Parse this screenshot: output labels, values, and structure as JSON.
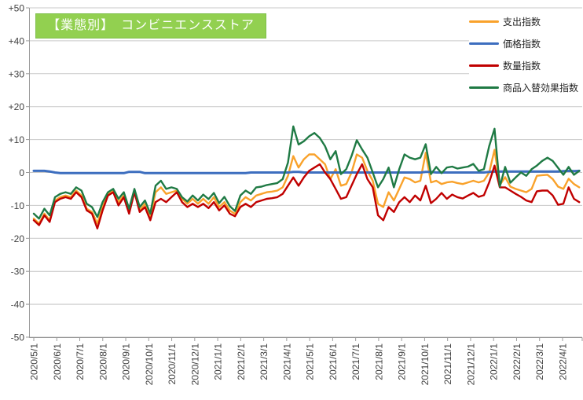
{
  "title_box": {
    "label": "【業態別】　コンビニエンスストア",
    "bg_color": "#92D050",
    "text_color": "#FFFFFF"
  },
  "legend": [
    {
      "id": "expenditure-index",
      "label": "支出指数",
      "color": "#F9A22B"
    },
    {
      "id": "price-index",
      "label": "価格指数",
      "color": "#3D6EBF"
    },
    {
      "id": "quantity-index",
      "label": "数量指数",
      "color": "#C00000"
    },
    {
      "id": "product-mix-effect-index",
      "label": "商品入替効果指数",
      "color": "#1F7A44"
    }
  ],
  "chart_data": {
    "type": "line",
    "title": "【業態別】　コンビニエンスストア",
    "x_start": "2020/5/1",
    "x_frequency": "weekly",
    "x_tick_labels": [
      "2020/5/1",
      "2020/6/1",
      "2020/7/1",
      "2020/8/1",
      "2020/9/1",
      "2020/10/1",
      "2020/11/1",
      "2020/12/1",
      "2021/1/1",
      "2021/2/1",
      "2021/3/1",
      "2021/4/1",
      "2021/5/1",
      "2021/6/1",
      "2021/7/1",
      "2021/8/1",
      "2021/9/1",
      "2021/10/1",
      "2021/11/1",
      "2021/12/1",
      "2022/1/1",
      "2022/2/1",
      "2022/3/1",
      "2022/4/1"
    ],
    "y_tick_labels": [
      "+50",
      "+40",
      "+30",
      "+20",
      "+10",
      "0",
      "-10",
      "-20",
      "-30",
      "-40",
      "-50"
    ],
    "ylim": [
      -50,
      50
    ],
    "grid": true,
    "legend_position": "top-right",
    "series": [
      {
        "id": "expenditure-index",
        "name": "支出指数",
        "color": "#F9A22B",
        "values": [
          -14,
          -15.5,
          -12.5,
          -14.5,
          -8.5,
          -7.5,
          -7,
          -7.5,
          -5.5,
          -7,
          -11,
          -12,
          -15.5,
          -10.5,
          -6.5,
          -5.5,
          -9,
          -7,
          -12,
          -5.5,
          -11.5,
          -9.5,
          -13.5,
          -6,
          -4.5,
          -6.5,
          -6,
          -5.5,
          -8,
          -9.5,
          -8,
          -9.5,
          -8,
          -9.5,
          -7.5,
          -10.5,
          -9,
          -11.5,
          -12.6,
          -9,
          -7.5,
          -8.5,
          -7,
          -6.5,
          -6,
          -5.8,
          -5.5,
          -4.5,
          -1,
          5,
          1.5,
          4,
          5.5,
          5.5,
          4,
          2.5,
          -2,
          1,
          -4,
          -3.5,
          0,
          5.5,
          4.5,
          0.5,
          -2.5,
          -9.5,
          -10.5,
          -6,
          -8.5,
          -5,
          -1.5,
          -2,
          -3,
          -2.5,
          6,
          -3,
          -2.5,
          -3.5,
          -3,
          -2.8,
          -3.2,
          -3.5,
          -3,
          -2.5,
          -3,
          -2.5,
          0,
          6.9,
          -3.8,
          -1.4,
          -4.3,
          -5,
          -5.5,
          -6,
          -5,
          -1,
          -0.8,
          -0.7,
          -2,
          -4.3,
          -5,
          -1.9,
          -3.5,
          -4.5
        ]
      },
      {
        "id": "price-index",
        "name": "価格指数",
        "color": "#3D6EBF",
        "values": [
          0.5,
          0.5,
          0.5,
          0.3,
          0,
          -0.2,
          -0.2,
          -0.2,
          -0.2,
          -0.2,
          -0.2,
          -0.2,
          -0.2,
          -0.2,
          -0.2,
          -0.2,
          -0.2,
          -0.2,
          0.2,
          0.2,
          0.2,
          -0.2,
          -0.2,
          -0.2,
          -0.2,
          -0.2,
          -0.2,
          -0.2,
          -0.2,
          -0.2,
          -0.2,
          -0.2,
          -0.2,
          -0.2,
          -0.2,
          -0.2,
          -0.2,
          -0.2,
          -0.2,
          -0.2,
          -0.2,
          0,
          0,
          0,
          0,
          0,
          0,
          0,
          0,
          0.2,
          0.2,
          0,
          0,
          0,
          0,
          0,
          0,
          0,
          0,
          0,
          0,
          0,
          0,
          0,
          0,
          0,
          0,
          0,
          0,
          0,
          0,
          0,
          0,
          0,
          0.2,
          0.2,
          0,
          0,
          0,
          0,
          0,
          0,
          0,
          0,
          0,
          0,
          0.2,
          0.3,
          0.3,
          0.3,
          0.3,
          0.3,
          0.3,
          0.3,
          0.3,
          0.3,
          0.3,
          0.3,
          0.3,
          0.3,
          0.4,
          0.5,
          0.4,
          0.5
        ]
      },
      {
        "id": "quantity-index",
        "name": "数量指数",
        "color": "#C00000",
        "values": [
          -14.5,
          -16,
          -13,
          -15,
          -9,
          -8,
          -7.5,
          -8,
          -6,
          -7.5,
          -11.5,
          -12.5,
          -17,
          -11.5,
          -7,
          -6,
          -10,
          -7.5,
          -12.5,
          -6,
          -12,
          -10.5,
          -14.5,
          -9,
          -8,
          -9,
          -7.5,
          -6,
          -9,
          -10.5,
          -9.5,
          -10.5,
          -9.5,
          -10.8,
          -9,
          -11.5,
          -10,
          -12.5,
          -13.3,
          -10.5,
          -9.5,
          -10.5,
          -9,
          -8.5,
          -8,
          -7.8,
          -7.5,
          -6.5,
          -4,
          -1.5,
          -4,
          -1.5,
          0.5,
          1.5,
          2.5,
          0,
          -2,
          -5,
          -8,
          -7.5,
          -4,
          -0.5,
          2.5,
          -2,
          -4.5,
          -13,
          -14.5,
          -10.5,
          -12,
          -9,
          -7.5,
          -9,
          -7,
          -8.5,
          -4,
          -9.3,
          -8,
          -6.2,
          -8,
          -6.7,
          -7.5,
          -7.9,
          -7,
          -6.2,
          -7.4,
          -6.9,
          -3,
          2.1,
          -4.5,
          -4.5,
          -5.5,
          -6.5,
          -7.4,
          -8.5,
          -9,
          -5.7,
          -5.5,
          -5.5,
          -7,
          -9.8,
          -9.5,
          -4.5,
          -8,
          -9
        ]
      },
      {
        "id": "product-mix-effect-index",
        "name": "商品入替効果指数",
        "color": "#1F7A44",
        "values": [
          -12.5,
          -14,
          -11,
          -13,
          -7.5,
          -6.5,
          -6,
          -6.5,
          -4.5,
          -5.5,
          -9.5,
          -10.5,
          -13.5,
          -9,
          -6,
          -5,
          -8,
          -6,
          -11,
          -5,
          -10.5,
          -8.5,
          -12.5,
          -4,
          -2.5,
          -5,
          -4.5,
          -5,
          -7.5,
          -8.8,
          -7,
          -8.5,
          -6.7,
          -8.1,
          -6.2,
          -9.3,
          -7.4,
          -10.2,
          -11.7,
          -7,
          -5.5,
          -6.5,
          -4.5,
          -4.3,
          -3.8,
          -3.5,
          -3.2,
          -2,
          3,
          14,
          8.5,
          9.5,
          11,
          12,
          10.5,
          8,
          4,
          6.5,
          -0.5,
          1,
          5,
          9.8,
          7,
          4.5,
          0,
          -4.5,
          -2,
          1.5,
          -4.5,
          1,
          5.5,
          4.5,
          4,
          4.5,
          8.6,
          -0.5,
          1.7,
          -0.2,
          1.5,
          1.8,
          1.2,
          1.5,
          1.8,
          2.6,
          0.5,
          1,
          8,
          13.3,
          -4.3,
          1.7,
          -3.1,
          -1.5,
          0,
          -1,
          1,
          2.1,
          3.5,
          4.5,
          3.5,
          1.4,
          -0.7,
          1.7,
          -0.7,
          0.5
        ]
      }
    ]
  }
}
